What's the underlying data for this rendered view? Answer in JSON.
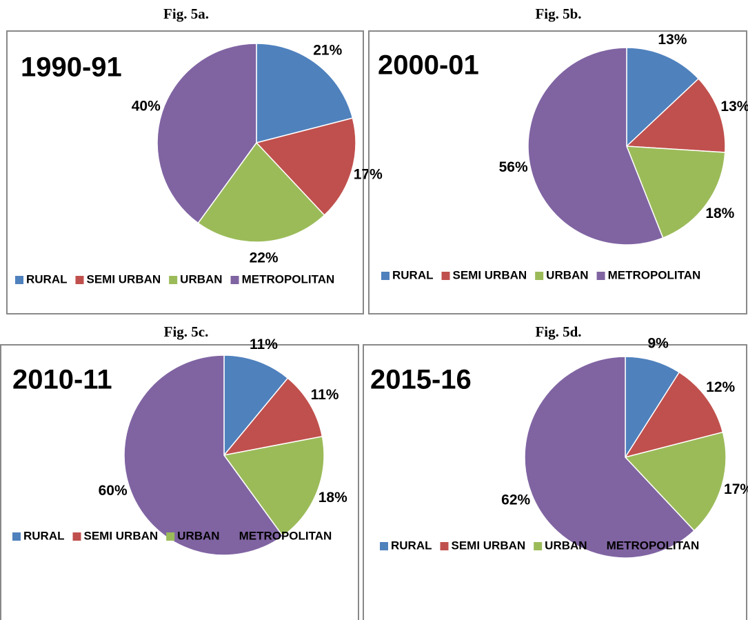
{
  "chart_data": [
    {
      "type": "pie",
      "caption": "Fig. 5a.",
      "title": "1990-91",
      "categories": [
        "RURAL",
        "SEMI URBAN",
        "URBAN",
        "METROPOLITAN"
      ],
      "values": [
        21,
        17,
        22,
        40
      ],
      "value_labels": [
        "21%",
        "17%",
        "22%",
        "40%"
      ],
      "colors": [
        "#4f81bd",
        "#c0504d",
        "#9bbb59",
        "#8064a2"
      ]
    },
    {
      "type": "pie",
      "caption": "Fig. 5b.",
      "title": "2000-01",
      "categories": [
        "RURAL",
        "SEMI URBAN",
        "URBAN",
        "METROPOLITAN"
      ],
      "values": [
        13,
        13,
        18,
        56
      ],
      "value_labels": [
        "13%",
        "13%",
        "18%",
        "56%"
      ],
      "colors": [
        "#4f81bd",
        "#c0504d",
        "#9bbb59",
        "#8064a2"
      ]
    },
    {
      "type": "pie",
      "caption": "Fig. 5c.",
      "title": "2010-11",
      "categories": [
        "RURAL",
        "SEMI URBAN",
        "URBAN",
        "METROPOLITAN"
      ],
      "values": [
        11,
        11,
        18,
        60
      ],
      "value_labels": [
        "11%",
        "11%",
        "18%",
        "60%"
      ],
      "colors": [
        "#4f81bd",
        "#c0504d",
        "#9bbb59",
        "#8064a2"
      ]
    },
    {
      "type": "pie",
      "caption": "Fig. 5d.",
      "title": "2015-16",
      "categories": [
        "RURAL",
        "SEMI URBAN",
        "URBAN",
        "METROPOLITAN"
      ],
      "values": [
        9,
        12,
        17,
        62
      ],
      "value_labels": [
        "9%",
        "12%",
        "17%",
        "62%"
      ],
      "colors": [
        "#4f81bd",
        "#c0504d",
        "#9bbb59",
        "#8064a2"
      ]
    }
  ]
}
